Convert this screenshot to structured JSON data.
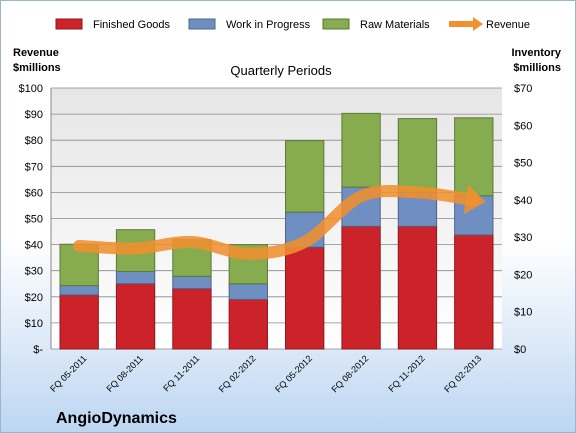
{
  "chart_data": {
    "type": "bar",
    "stacked": true,
    "subtitle": "Quarterly Periods",
    "company": "AngioDynamics",
    "left_axis_title": [
      "Revenue",
      "$millions"
    ],
    "right_axis_title": [
      "Inventory",
      "$millions"
    ],
    "categories": [
      "FQ 05-2011",
      "FQ 08-2011",
      "FQ 11-2011",
      "FQ 02-2012",
      "FQ 05-2012",
      "FQ 08-2012",
      "FQ 11-2012",
      "FQ 02-2013"
    ],
    "left_axis": {
      "min": 0,
      "max": 100,
      "step": 10,
      "ticks": [
        "$-",
        "$10",
        "$20",
        "$30",
        "$40",
        "$50",
        "$60",
        "$70",
        "$80",
        "$90",
        "$100"
      ]
    },
    "right_axis": {
      "min": 0,
      "max": 70,
      "step": 10,
      "ticks": [
        "$0",
        "$10",
        "$20",
        "$30",
        "$40",
        "$50",
        "$60",
        "$70"
      ]
    },
    "series": [
      {
        "name": "Finished Goods",
        "axis": "right",
        "color": "#cc2229",
        "values": [
          14.5,
          17.5,
          16.2,
          13.3,
          27.3,
          32.9,
          32.9,
          30.6
        ]
      },
      {
        "name": "Work in Progress",
        "axis": "right",
        "color": "#6f8fc2",
        "values": [
          2.5,
          3.3,
          3.3,
          4.2,
          9.4,
          10.5,
          9.1,
          10.5
        ]
      },
      {
        "name": "Raw Materials",
        "axis": "right",
        "color": "#86ac4f",
        "values": [
          11.1,
          11.2,
          9.8,
          10.5,
          19.2,
          19.8,
          19.8,
          20.9
        ]
      },
      {
        "name": "Revenue",
        "type": "line",
        "axis": "left",
        "color": "#f0902f",
        "values": [
          39.5,
          38.5,
          41.0,
          36.5,
          41.0,
          58.5,
          60.0,
          57.0
        ]
      }
    ],
    "grid": true,
    "legend_position": "top"
  }
}
